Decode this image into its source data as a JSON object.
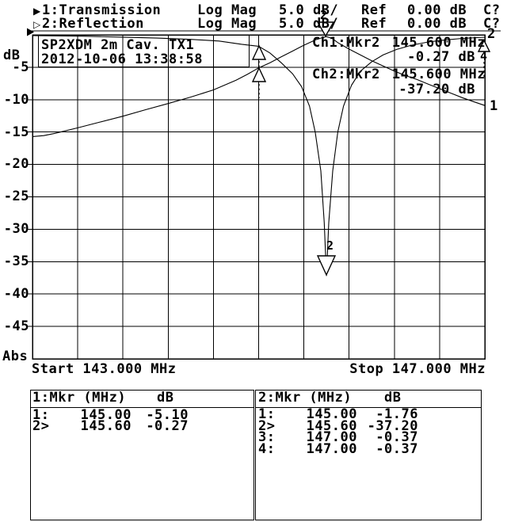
{
  "header": {
    "row1": {
      "indicator": "▶",
      "channel": "1:Transmission",
      "format": "Log Mag",
      "scale": "5.0 dB/",
      "ref_label": "Ref",
      "ref_value": "0.00 dB",
      "status": "C?"
    },
    "row2": {
      "indicator": "▷",
      "channel": "2:Reflection",
      "format": "Log Mag",
      "scale": "5.0 dB/",
      "ref_label": "Ref",
      "ref_value": "0.00 dB",
      "status": "C?"
    }
  },
  "plot": {
    "title_line1": "SP2XDM 2m Cav. TX1",
    "title_line2": "2012-10-06 13:38:58",
    "y_axis": {
      "unit": "dB",
      "ticks": [
        "-5",
        "-10",
        "-15",
        "-20",
        "-25",
        "-30",
        "-35",
        "-40",
        "-45"
      ],
      "bottom": "Abs"
    },
    "x_axis": {
      "start": "Start 143.000 MHz",
      "stop": "Stop 147.000 MHz"
    },
    "readout_ch1": {
      "label": "Ch1:Mkr2",
      "freq": "145.600 MHz",
      "value": "-0.27 dB"
    },
    "readout_ch2": {
      "label": "Ch2:Mkr2",
      "freq": "145.600 MHz",
      "value": "-37.20 dB"
    },
    "trace1_label": "1",
    "trace2_label": "2",
    "marker_peak_label": "2",
    "marker_notch_label": "2",
    "marker_edge_label": "4"
  },
  "tables": {
    "ch1": {
      "title": "1:Mkr (MHz)",
      "unit": "dB",
      "rows": [
        {
          "id": "1:",
          "freq": "145.00",
          "db": "-5.10"
        },
        {
          "id": "2>",
          "freq": "145.60",
          "db": "-0.27"
        }
      ]
    },
    "ch2": {
      "title": "2:Mkr (MHz)",
      "unit": "dB",
      "rows": [
        {
          "id": "1:",
          "freq": "145.00",
          "db": "-1.76"
        },
        {
          "id": "2>",
          "freq": "145.60",
          "db": "-37.20"
        },
        {
          "id": "3:",
          "freq": "147.00",
          "db": "-0.37"
        },
        {
          "id": "4:",
          "freq": "147.00",
          "db": "-0.37"
        }
      ]
    }
  },
  "chart_data": {
    "type": "line",
    "title": "SP2XDM 2m Cav. TX1",
    "timestamp_shown": "2012-10-06 13:38:58",
    "xlabel": "MHz",
    "ylabel": "dB",
    "x_range": [
      143.0,
      147.0
    ],
    "y_range": [
      -50,
      0
    ],
    "scale_per_div_db": 5.0,
    "ref_db": 0.0,
    "grid": "on",
    "series": [
      {
        "name": "Transmission",
        "trace": 1,
        "points": [
          [
            143.0,
            -15.7
          ],
          [
            143.1,
            -15.55
          ],
          [
            143.2,
            -15.2
          ],
          [
            143.4,
            -14.35
          ],
          [
            143.6,
            -13.45
          ],
          [
            143.8,
            -12.55
          ],
          [
            144.0,
            -11.55
          ],
          [
            144.2,
            -10.6
          ],
          [
            144.4,
            -9.6
          ],
          [
            144.6,
            -8.5
          ],
          [
            144.8,
            -7.0
          ],
          [
            144.9,
            -6.1
          ],
          [
            145.0,
            -5.1
          ],
          [
            145.1,
            -4.3
          ],
          [
            145.2,
            -3.4
          ],
          [
            145.3,
            -2.5
          ],
          [
            145.4,
            -1.6
          ],
          [
            145.5,
            -0.8
          ],
          [
            145.55,
            -0.5
          ],
          [
            145.6,
            -0.27
          ],
          [
            145.65,
            -0.55
          ],
          [
            145.7,
            -1.2
          ],
          [
            145.8,
            -2.2
          ],
          [
            145.9,
            -3.1
          ],
          [
            146.0,
            -4.0
          ],
          [
            146.1,
            -4.8
          ],
          [
            146.2,
            -5.6
          ],
          [
            146.3,
            -6.3
          ],
          [
            146.4,
            -6.9
          ],
          [
            146.5,
            -7.6
          ],
          [
            146.6,
            -8.3
          ],
          [
            146.7,
            -9.0
          ],
          [
            146.8,
            -9.7
          ],
          [
            146.9,
            -10.3
          ],
          [
            147.0,
            -10.9
          ]
        ]
      },
      {
        "name": "Reflection",
        "trace": 2,
        "points": [
          [
            143.0,
            -0.12
          ],
          [
            143.4,
            -0.2
          ],
          [
            143.8,
            -0.35
          ],
          [
            144.1,
            -0.5
          ],
          [
            144.4,
            -0.7
          ],
          [
            144.65,
            -0.95
          ],
          [
            144.85,
            -1.45
          ],
          [
            145.0,
            -1.76
          ],
          [
            145.1,
            -2.8
          ],
          [
            145.2,
            -4.3
          ],
          [
            145.3,
            -6.0
          ],
          [
            145.38,
            -8.0
          ],
          [
            145.45,
            -11.0
          ],
          [
            145.5,
            -15.0
          ],
          [
            145.55,
            -21.0
          ],
          [
            145.58,
            -29.0
          ],
          [
            145.6,
            -37.2
          ],
          [
            145.62,
            -29.0
          ],
          [
            145.655,
            -21.0
          ],
          [
            145.7,
            -15.0
          ],
          [
            145.75,
            -11.0
          ],
          [
            145.82,
            -7.8
          ],
          [
            145.9,
            -5.6
          ],
          [
            146.0,
            -4.15
          ],
          [
            146.1,
            -3.1
          ],
          [
            146.22,
            -2.25
          ],
          [
            146.35,
            -1.6
          ],
          [
            146.5,
            -1.1
          ],
          [
            146.65,
            -0.78
          ],
          [
            146.8,
            -0.55
          ],
          [
            147.0,
            -0.37
          ]
        ]
      }
    ],
    "markers": [
      {
        "channel": 1,
        "marker": 1,
        "mhz": 145.0,
        "db": -5.1,
        "active": false
      },
      {
        "channel": 1,
        "marker": 2,
        "mhz": 145.6,
        "db": -0.27,
        "active": true
      },
      {
        "channel": 2,
        "marker": 1,
        "mhz": 145.0,
        "db": -1.76,
        "active": false
      },
      {
        "channel": 2,
        "marker": 2,
        "mhz": 145.6,
        "db": -37.2,
        "active": true
      },
      {
        "channel": 2,
        "marker": 3,
        "mhz": 147.0,
        "db": -0.37,
        "active": false
      },
      {
        "channel": 2,
        "marker": 4,
        "mhz": 147.0,
        "db": -0.37,
        "active": false
      }
    ]
  }
}
